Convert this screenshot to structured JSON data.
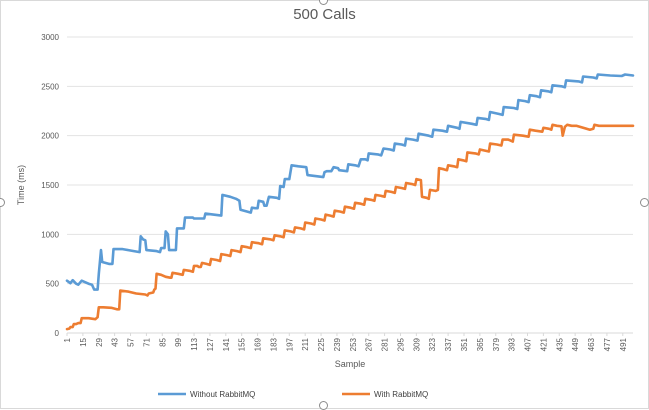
{
  "chart_data": {
    "type": "line",
    "title": "500 Calls",
    "xlabel": "Sample",
    "ylabel": "Time (ms)",
    "ylim": [
      0,
      3000
    ],
    "yticks": [
      0,
      500,
      1000,
      1500,
      2000,
      2500,
      3000
    ],
    "xlim": [
      1,
      500
    ],
    "xticks": [
      1,
      15,
      29,
      43,
      57,
      71,
      85,
      99,
      113,
      127,
      141,
      155,
      169,
      183,
      197,
      211,
      225,
      239,
      253,
      267,
      281,
      295,
      309,
      323,
      337,
      351,
      365,
      379,
      393,
      407,
      421,
      435,
      449,
      463,
      477,
      491
    ],
    "grid": "horizontal",
    "legend": "bottom",
    "series": [
      {
        "name": "Without RabbitMQ",
        "color": "#5b9bd5",
        "points": [
          [
            1,
            530
          ],
          [
            4,
            505
          ],
          [
            6,
            535
          ],
          [
            9,
            500
          ],
          [
            11,
            490
          ],
          [
            14,
            530
          ],
          [
            17,
            515
          ],
          [
            20,
            500
          ],
          [
            23,
            490
          ],
          [
            25,
            440
          ],
          [
            28,
            440
          ],
          [
            29,
            600
          ],
          [
            31,
            840
          ],
          [
            32,
            720
          ],
          [
            38,
            700
          ],
          [
            41,
            700
          ],
          [
            42,
            850
          ],
          [
            50,
            850
          ],
          [
            55,
            840
          ],
          [
            60,
            830
          ],
          [
            65,
            820
          ],
          [
            66,
            980
          ],
          [
            68,
            950
          ],
          [
            70,
            940
          ],
          [
            71,
            840
          ],
          [
            80,
            830
          ],
          [
            83,
            820
          ],
          [
            84,
            860
          ],
          [
            87,
            860
          ],
          [
            88,
            1030
          ],
          [
            90,
            1000
          ],
          [
            91,
            840
          ],
          [
            97,
            840
          ],
          [
            98,
            1060
          ],
          [
            104,
            1060
          ],
          [
            105,
            1170
          ],
          [
            112,
            1170
          ],
          [
            113,
            1160
          ],
          [
            122,
            1160
          ],
          [
            123,
            1210
          ],
          [
            130,
            1200
          ],
          [
            137,
            1190
          ],
          [
            138,
            1400
          ],
          [
            145,
            1380
          ],
          [
            150,
            1360
          ],
          [
            153,
            1340
          ],
          [
            154,
            1250
          ],
          [
            160,
            1230
          ],
          [
            163,
            1220
          ],
          [
            164,
            1270
          ],
          [
            167,
            1265
          ],
          [
            169,
            1265
          ],
          [
            170,
            1340
          ],
          [
            174,
            1330
          ],
          [
            175,
            1290
          ],
          [
            177,
            1290
          ],
          [
            179,
            1380
          ],
          [
            186,
            1370
          ],
          [
            188,
            1360
          ],
          [
            189,
            1490
          ],
          [
            192,
            1480
          ],
          [
            193,
            1560
          ],
          [
            197,
            1560
          ],
          [
            199,
            1700
          ],
          [
            205,
            1690
          ],
          [
            212,
            1680
          ],
          [
            213,
            1600
          ],
          [
            220,
            1590
          ],
          [
            227,
            1580
          ],
          [
            228,
            1630
          ],
          [
            230,
            1640
          ],
          [
            234,
            1640
          ],
          [
            236,
            1680
          ],
          [
            240,
            1670
          ],
          [
            241,
            1650
          ],
          [
            248,
            1640
          ],
          [
            249,
            1710
          ],
          [
            255,
            1700
          ],
          [
            258,
            1690
          ],
          [
            260,
            1760
          ],
          [
            264,
            1760
          ],
          [
            266,
            1750
          ],
          [
            267,
            1820
          ],
          [
            275,
            1810
          ],
          [
            278,
            1800
          ],
          [
            280,
            1870
          ],
          [
            286,
            1860
          ],
          [
            289,
            1850
          ],
          [
            290,
            1920
          ],
          [
            296,
            1910
          ],
          [
            299,
            1900
          ],
          [
            300,
            1970
          ],
          [
            306,
            1960
          ],
          [
            310,
            1950
          ],
          [
            311,
            2020
          ],
          [
            320,
            2000
          ],
          [
            323,
            1990
          ],
          [
            324,
            2060
          ],
          [
            332,
            2050
          ],
          [
            336,
            2040
          ],
          [
            337,
            2100
          ],
          [
            345,
            2080
          ],
          [
            347,
            2070
          ],
          [
            348,
            2140
          ],
          [
            358,
            2120
          ],
          [
            362,
            2110
          ],
          [
            363,
            2180
          ],
          [
            370,
            2170
          ],
          [
            373,
            2160
          ],
          [
            374,
            2240
          ],
          [
            382,
            2220
          ],
          [
            385,
            2210
          ],
          [
            386,
            2290
          ],
          [
            395,
            2280
          ],
          [
            398,
            2270
          ],
          [
            399,
            2360
          ],
          [
            405,
            2350
          ],
          [
            408,
            2340
          ],
          [
            409,
            2410
          ],
          [
            415,
            2400
          ],
          [
            418,
            2390
          ],
          [
            419,
            2460
          ],
          [
            425,
            2450
          ],
          [
            428,
            2440
          ],
          [
            429,
            2510
          ],
          [
            437,
            2500
          ],
          [
            440,
            2490
          ],
          [
            441,
            2560
          ],
          [
            452,
            2550
          ],
          [
            455,
            2540
          ],
          [
            456,
            2600
          ],
          [
            465,
            2590
          ],
          [
            468,
            2580
          ],
          [
            469,
            2620
          ],
          [
            480,
            2610
          ],
          [
            490,
            2605
          ],
          [
            493,
            2620
          ],
          [
            500,
            2610
          ]
        ]
      },
      {
        "name": "With RabbitMQ",
        "color": "#ed7d31",
        "points": [
          [
            1,
            40
          ],
          [
            3,
            45
          ],
          [
            4,
            60
          ],
          [
            6,
            60
          ],
          [
            7,
            90
          ],
          [
            9,
            90
          ],
          [
            11,
            100
          ],
          [
            13,
            100
          ],
          [
            14,
            150
          ],
          [
            20,
            150
          ],
          [
            26,
            140
          ],
          [
            27,
            150
          ],
          [
            28,
            160
          ],
          [
            29,
            260
          ],
          [
            33,
            260
          ],
          [
            40,
            255
          ],
          [
            45,
            240
          ],
          [
            47,
            240
          ],
          [
            48,
            430
          ],
          [
            55,
            420
          ],
          [
            62,
            400
          ],
          [
            70,
            390
          ],
          [
            72,
            380
          ],
          [
            73,
            400
          ],
          [
            77,
            410
          ],
          [
            78,
            440
          ],
          [
            79,
            450
          ],
          [
            80,
            600
          ],
          [
            84,
            590
          ],
          [
            88,
            570
          ],
          [
            92,
            560
          ],
          [
            93,
            560
          ],
          [
            94,
            610
          ],
          [
            99,
            600
          ],
          [
            103,
            590
          ],
          [
            104,
            640
          ],
          [
            109,
            630
          ],
          [
            112,
            620
          ],
          [
            113,
            680
          ],
          [
            116,
            680
          ],
          [
            117,
            670
          ],
          [
            119,
            670
          ],
          [
            120,
            710
          ],
          [
            124,
            700
          ],
          [
            127,
            690
          ],
          [
            128,
            750
          ],
          [
            133,
            740
          ],
          [
            136,
            730
          ],
          [
            137,
            800
          ],
          [
            142,
            790
          ],
          [
            145,
            780
          ],
          [
            146,
            840
          ],
          [
            151,
            830
          ],
          [
            154,
            820
          ],
          [
            155,
            880
          ],
          [
            160,
            870
          ],
          [
            163,
            860
          ],
          [
            164,
            920
          ],
          [
            170,
            910
          ],
          [
            173,
            900
          ],
          [
            174,
            960
          ],
          [
            180,
            950
          ],
          [
            183,
            940
          ],
          [
            184,
            990
          ],
          [
            189,
            980
          ],
          [
            192,
            970
          ],
          [
            193,
            1040
          ],
          [
            198,
            1030
          ],
          [
            201,
            1020
          ],
          [
            202,
            1070
          ],
          [
            207,
            1060
          ],
          [
            210,
            1050
          ],
          [
            211,
            1120
          ],
          [
            216,
            1110
          ],
          [
            219,
            1100
          ],
          [
            220,
            1160
          ],
          [
            225,
            1150
          ],
          [
            228,
            1140
          ],
          [
            229,
            1200
          ],
          [
            233,
            1190
          ],
          [
            236,
            1180
          ],
          [
            237,
            1240
          ],
          [
            242,
            1230
          ],
          [
            245,
            1220
          ],
          [
            246,
            1280
          ],
          [
            251,
            1270
          ],
          [
            254,
            1260
          ],
          [
            255,
            1320
          ],
          [
            260,
            1310
          ],
          [
            263,
            1300
          ],
          [
            264,
            1360
          ],
          [
            269,
            1350
          ],
          [
            272,
            1340
          ],
          [
            273,
            1400
          ],
          [
            278,
            1390
          ],
          [
            281,
            1380
          ],
          [
            282,
            1440
          ],
          [
            287,
            1430
          ],
          [
            290,
            1420
          ],
          [
            291,
            1480
          ],
          [
            296,
            1470
          ],
          [
            299,
            1460
          ],
          [
            300,
            1520
          ],
          [
            305,
            1510
          ],
          [
            308,
            1500
          ],
          [
            309,
            1560
          ],
          [
            313,
            1550
          ],
          [
            314,
            1380
          ],
          [
            318,
            1370
          ],
          [
            320,
            1360
          ],
          [
            321,
            1450
          ],
          [
            326,
            1440
          ],
          [
            328,
            1450
          ],
          [
            329,
            1670
          ],
          [
            333,
            1660
          ],
          [
            336,
            1650
          ],
          [
            337,
            1700
          ],
          [
            342,
            1690
          ],
          [
            345,
            1680
          ],
          [
            346,
            1760
          ],
          [
            350,
            1750
          ],
          [
            353,
            1740
          ],
          [
            354,
            1830
          ],
          [
            361,
            1820
          ],
          [
            364,
            1810
          ],
          [
            365,
            1860
          ],
          [
            369,
            1850
          ],
          [
            373,
            1840
          ],
          [
            374,
            1920
          ],
          [
            380,
            1910
          ],
          [
            384,
            1900
          ],
          [
            385,
            1960
          ],
          [
            390,
            1960
          ],
          [
            394,
            1940
          ],
          [
            395,
            2010
          ],
          [
            403,
            2000
          ],
          [
            408,
            1990
          ],
          [
            409,
            2060
          ],
          [
            414,
            2050
          ],
          [
            420,
            2040
          ],
          [
            421,
            2080
          ],
          [
            426,
            2070
          ],
          [
            428,
            2060
          ],
          [
            429,
            2110
          ],
          [
            433,
            2100
          ],
          [
            437,
            2095
          ],
          [
            438,
            2000
          ],
          [
            440,
            2090
          ],
          [
            442,
            2110
          ],
          [
            446,
            2100
          ],
          [
            450,
            2100
          ],
          [
            462,
            2060
          ],
          [
            465,
            2070
          ],
          [
            466,
            2110
          ],
          [
            470,
            2100
          ],
          [
            480,
            2100
          ],
          [
            490,
            2100
          ],
          [
            500,
            2100
          ]
        ]
      }
    ]
  }
}
